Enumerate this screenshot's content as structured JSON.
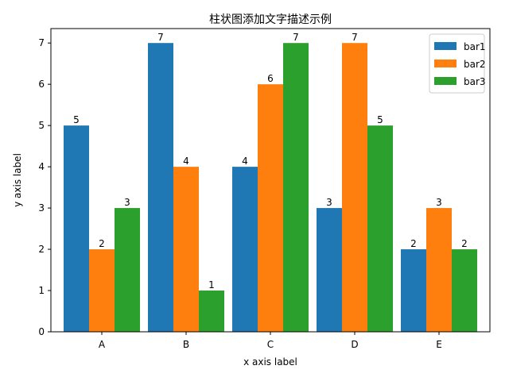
{
  "chart_data": {
    "type": "bar",
    "title": "柱状图添加文字描述示例",
    "xlabel": "x axis label",
    "ylabel": "y axis label",
    "categories": [
      "A",
      "B",
      "C",
      "D",
      "E"
    ],
    "ylim": [
      0,
      7.35
    ],
    "yticks": [
      0,
      1,
      2,
      3,
      4,
      5,
      6,
      7
    ],
    "legend_position": "top-right",
    "grid": false,
    "series": [
      {
        "name": "bar1",
        "values": [
          5,
          7,
          4,
          3,
          2
        ],
        "color": "#1f77b4"
      },
      {
        "name": "bar2",
        "values": [
          2,
          4,
          6,
          7,
          3
        ],
        "color": "#ff7f0e"
      },
      {
        "name": "bar3",
        "values": [
          3,
          1,
          7,
          5,
          2
        ],
        "color": "#2ca02c"
      }
    ]
  }
}
